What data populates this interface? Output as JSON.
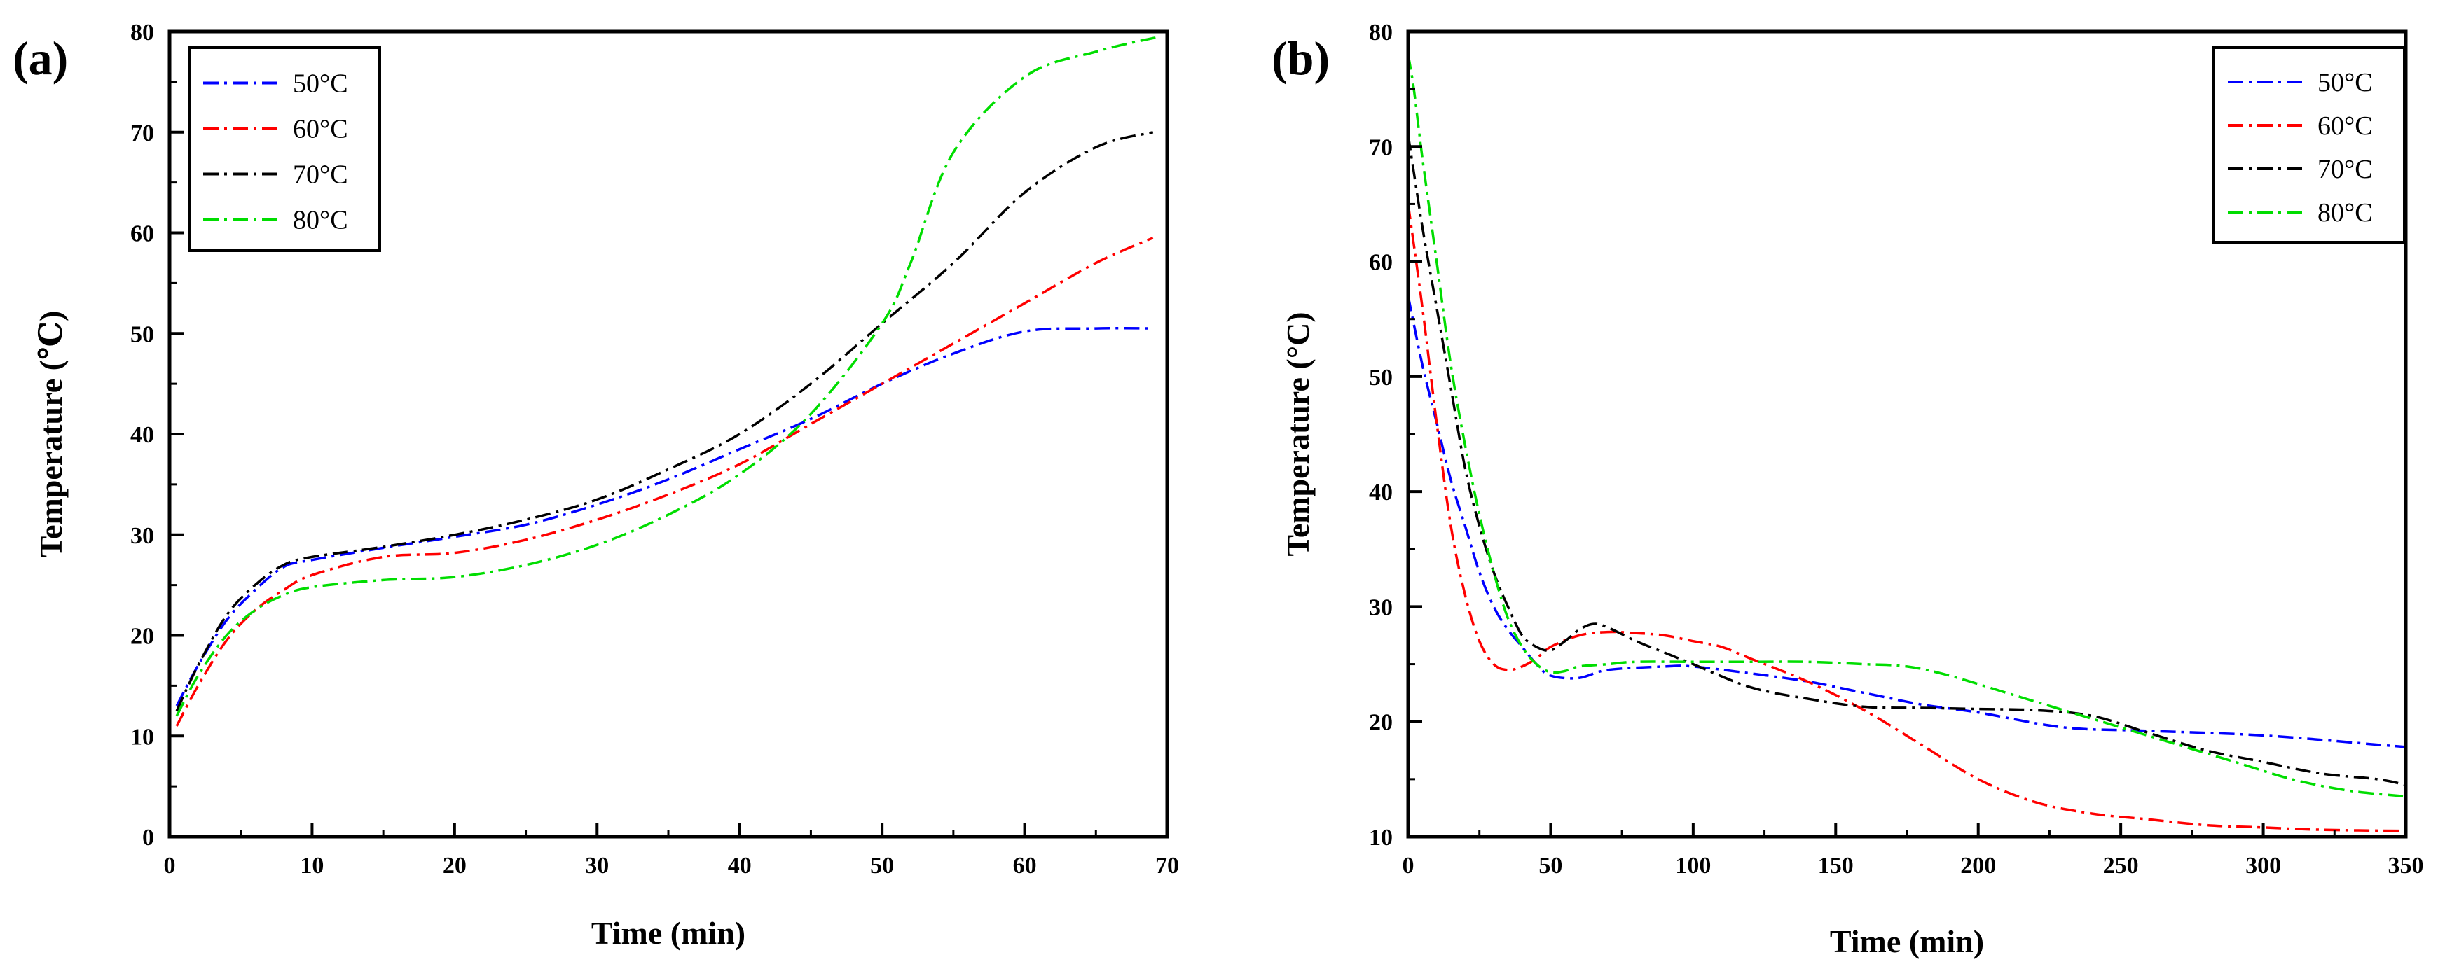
{
  "figure": {
    "panels": [
      "(a)",
      "(b)"
    ]
  },
  "chart_data": [
    {
      "type": "line",
      "panel_label": "(a)",
      "title": "",
      "xlabel": "Time  (min)",
      "ylabel": "Temperature  (℃)",
      "xlim": [
        0,
        70
      ],
      "ylim": [
        0,
        80
      ],
      "xticks": [
        0,
        10,
        20,
        30,
        40,
        50,
        60,
        70
      ],
      "yticks": [
        0,
        10,
        20,
        30,
        40,
        50,
        60,
        70,
        80
      ],
      "legend_position": "top-left",
      "series": [
        {
          "name": "50°C",
          "color": "#0000ff",
          "x": [
            0.5,
            2,
            4,
            6,
            8,
            10,
            15,
            20,
            25,
            30,
            35,
            40,
            45,
            50,
            55,
            60,
            65,
            69
          ],
          "y": [
            13,
            17,
            21.5,
            24.5,
            26.8,
            27.5,
            28.7,
            29.8,
            31,
            33,
            35.5,
            38.5,
            41.5,
            45,
            48,
            50.2,
            50.5,
            50.5
          ]
        },
        {
          "name": "60°C",
          "color": "#ff0000",
          "x": [
            0.5,
            2,
            4,
            6,
            8,
            10,
            15,
            20,
            25,
            30,
            35,
            40,
            45,
            50,
            55,
            60,
            65,
            69
          ],
          "y": [
            11,
            15,
            19.5,
            22.5,
            24.5,
            26,
            27.8,
            28.2,
            29.5,
            31.5,
            34,
            37,
            41,
            45,
            49,
            53,
            57,
            59.5
          ]
        },
        {
          "name": "70°C",
          "color": "#000000",
          "x": [
            0.5,
            2,
            4,
            6,
            8,
            10,
            15,
            20,
            25,
            30,
            35,
            40,
            45,
            50,
            55,
            60,
            65,
            69
          ],
          "y": [
            12.5,
            17,
            22,
            25,
            27,
            27.8,
            28.8,
            30,
            31.5,
            33.5,
            36.5,
            40,
            45,
            51,
            57,
            64,
            68.5,
            70
          ]
        },
        {
          "name": "80°C",
          "color": "#00dd00",
          "x": [
            0.5,
            2,
            4,
            6,
            8,
            10,
            15,
            20,
            25,
            30,
            35,
            40,
            45,
            50,
            52,
            55,
            60,
            65,
            69.5
          ],
          "y": [
            12,
            16,
            20,
            22.5,
            24,
            24.8,
            25.5,
            25.8,
            27,
            29,
            32,
            36,
            42,
            51,
            57,
            68,
            75.5,
            78,
            79.5
          ]
        }
      ]
    },
    {
      "type": "line",
      "panel_label": "(b)",
      "title": "",
      "xlabel": "Time (min)",
      "ylabel": "Temperature (°C)",
      "xlim": [
        0,
        350
      ],
      "ylim": [
        10,
        80
      ],
      "xticks": [
        0,
        50,
        100,
        150,
        200,
        250,
        300,
        350
      ],
      "yticks": [
        10,
        20,
        30,
        40,
        50,
        60,
        70,
        80
      ],
      "legend_position": "top-right",
      "series": [
        {
          "name": "50°C",
          "color": "#0000ff",
          "x": [
            0,
            5,
            10,
            15,
            20,
            25,
            30,
            35,
            40,
            45,
            50,
            60,
            70,
            90,
            100,
            120,
            140,
            160,
            180,
            200,
            230,
            260,
            300,
            340,
            350
          ],
          "y": [
            57,
            51,
            46,
            41,
            37,
            33,
            30,
            28,
            26.5,
            25,
            24,
            23.8,
            24.5,
            24.8,
            24.8,
            24.2,
            23.5,
            22.5,
            21.5,
            20.8,
            19.5,
            19.2,
            18.8,
            18,
            17.8
          ]
        },
        {
          "name": "60°C",
          "color": "#ff0000",
          "x": [
            0,
            5,
            10,
            15,
            20,
            25,
            30,
            35,
            40,
            45,
            50,
            60,
            70,
            80,
            90,
            100,
            110,
            120,
            140,
            160,
            180,
            200,
            220,
            240,
            260,
            280,
            300,
            320,
            350
          ],
          "y": [
            65,
            56,
            46,
            37,
            31,
            27,
            25,
            24.5,
            24.8,
            25.5,
            26.5,
            27.5,
            27.8,
            27.7,
            27.5,
            27,
            26.5,
            25.5,
            23.5,
            21,
            18,
            15,
            13,
            12,
            11.5,
            11,
            10.8,
            10.6,
            10.5
          ]
        },
        {
          "name": "70°C",
          "color": "#000000",
          "x": [
            0,
            5,
            10,
            15,
            20,
            25,
            30,
            35,
            40,
            45,
            50,
            55,
            60,
            65,
            70,
            80,
            90,
            100,
            120,
            140,
            160,
            180,
            200,
            220,
            240,
            260,
            280,
            300,
            320,
            340,
            350
          ],
          "y": [
            71,
            63,
            56,
            49,
            42,
            37,
            33,
            30,
            27.5,
            26.5,
            26.2,
            27,
            28,
            28.5,
            28.2,
            27,
            26,
            25,
            23,
            22,
            21.3,
            21.2,
            21.1,
            21,
            20.5,
            19,
            17.5,
            16.5,
            15.5,
            15,
            14.5
          ]
        },
        {
          "name": "80°C",
          "color": "#00dd00",
          "x": [
            0,
            2,
            5,
            10,
            15,
            20,
            25,
            30,
            35,
            40,
            45,
            50,
            55,
            60,
            70,
            80,
            100,
            120,
            140,
            160,
            175,
            190,
            210,
            230,
            250,
            270,
            290,
            310,
            330,
            350
          ],
          "y": [
            78,
            75,
            69,
            60,
            51,
            44,
            38,
            33,
            29,
            26.5,
            25,
            24.3,
            24.4,
            24.8,
            25,
            25.2,
            25.2,
            25.2,
            25.2,
            25,
            24.8,
            24,
            22.5,
            21,
            19.5,
            18,
            16.5,
            15,
            14,
            13.5
          ]
        }
      ]
    }
  ]
}
